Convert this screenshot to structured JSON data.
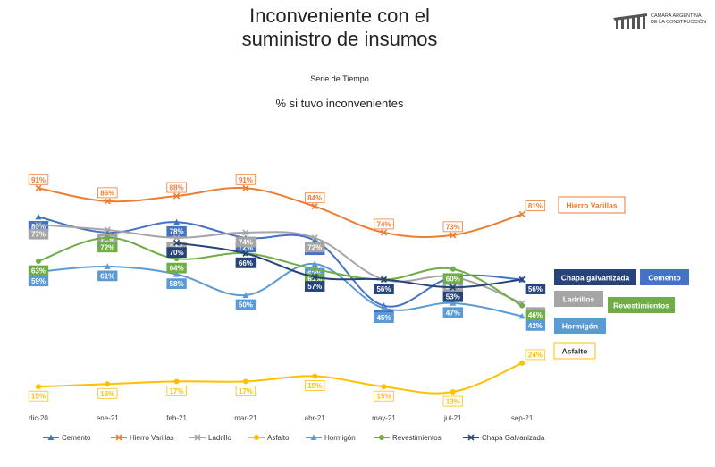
{
  "header": {
    "title_line1": "Inconveniente con el",
    "title_line2": "suministro de insumos",
    "subtitle": "Serie de Tiempo",
    "chart_title": "% si tuvo inconvenientes"
  },
  "logo": {
    "line1": "CÁMARA ARGENTINA",
    "line2": "DE LA CONSTRUCCIÓN"
  },
  "chart_data": {
    "type": "line",
    "title": "% si tuvo inconvenientes",
    "categories": [
      "dic-20",
      "ene-21",
      "feb-21",
      "mar-21",
      "abr-21",
      "may-21",
      "jul-21",
      "sep-21"
    ],
    "ylim": [
      0,
      100
    ],
    "grid": false,
    "legend_position": "bottom",
    "series": [
      {
        "name": "Cemento",
        "color": "#4472C4",
        "values": [
          80,
          74,
          78,
          72,
          71,
          46,
          57,
          56
        ],
        "end_label": "Cemento"
      },
      {
        "name": "Hierro Varillas",
        "color": "#ED7D31",
        "values": [
          91,
          86,
          88,
          91,
          84,
          74,
          73,
          81
        ],
        "end_label": "Hierro Varillas"
      },
      {
        "name": "Ladrillo",
        "color": "#A5A5A5",
        "values": [
          77,
          75,
          72,
          74,
          72,
          56,
          57,
          47
        ],
        "end_label": "Ladrillos"
      },
      {
        "name": "Asfalto",
        "color": "#FFC000",
        "values": [
          15,
          16,
          17,
          17,
          19,
          15,
          13,
          24
        ],
        "end_label": "Asfalto"
      },
      {
        "name": "Hormigón",
        "color": "#5B9BD5",
        "values": [
          59,
          61,
          58,
          50,
          62,
          45,
          47,
          42
        ],
        "end_label": "Hormigón"
      },
      {
        "name": "Revestimientos",
        "color": "#70AD47",
        "values": [
          63,
          72,
          64,
          66,
          60,
          56,
          60,
          46
        ],
        "end_label": "Revestimientos"
      },
      {
        "name": "Chapa Galvanizada",
        "color": "#264478",
        "values": [
          null,
          null,
          70,
          66,
          57,
          56,
          53,
          56
        ],
        "end_label": "Chapa galvanizada"
      }
    ]
  }
}
